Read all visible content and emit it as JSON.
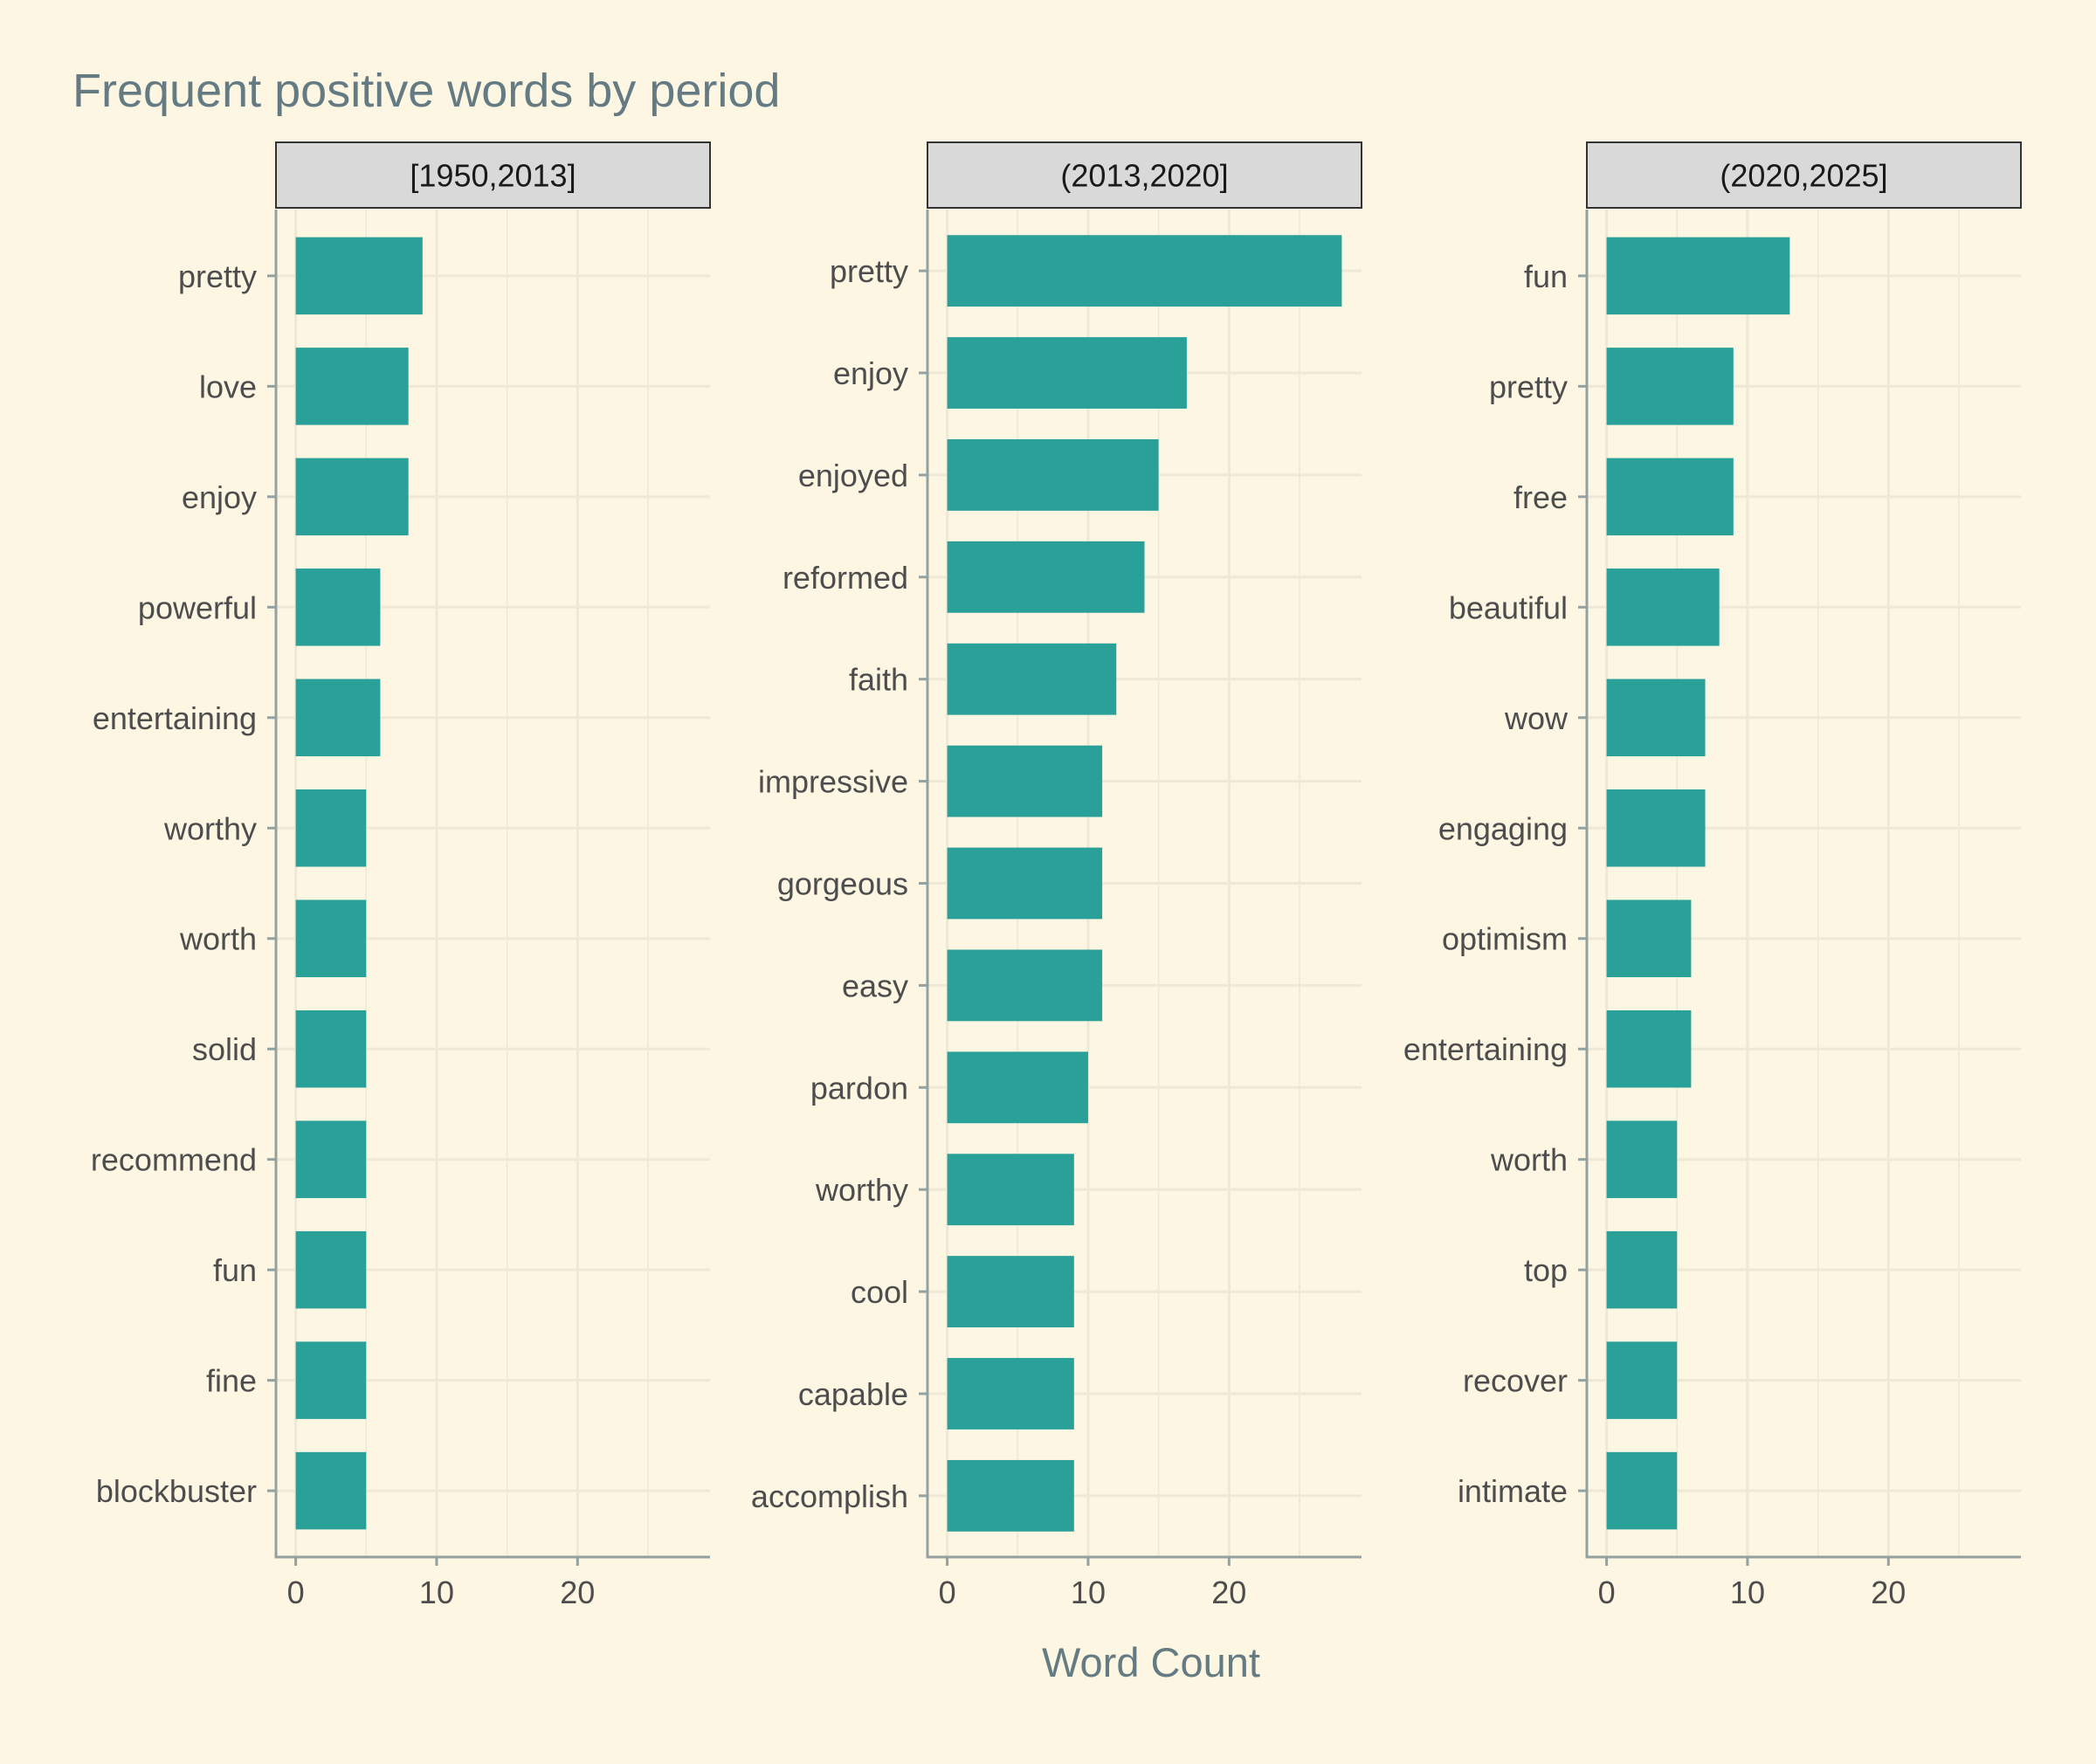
{
  "chart_data": {
    "type": "bar",
    "orientation": "horizontal",
    "title": "Frequent positive words by period",
    "xlabel": "Word Count",
    "ylabel": "",
    "xlim": [
      -1.4,
      29.4
    ],
    "x_ticks": [
      0,
      10,
      20
    ],
    "grid": true,
    "colors": {
      "background": "#fdf6e3",
      "bar": "#2aa198",
      "grid": "#eee8d5",
      "axis": "#93a1a1",
      "strip_fill": "#d9d9d9",
      "strip_border": "#333333",
      "title": "#657b83",
      "tick_text": "#4d4d4d"
    },
    "panels": [
      {
        "label": "[1950,2013]",
        "categories": [
          "pretty",
          "love",
          "enjoy",
          "powerful",
          "entertaining",
          "worthy",
          "worth",
          "solid",
          "recommend",
          "fun",
          "fine",
          "blockbuster"
        ],
        "values": [
          9,
          8,
          8,
          6,
          6,
          5,
          5,
          5,
          5,
          5,
          5,
          5
        ]
      },
      {
        "label": "(2013,2020]",
        "categories": [
          "pretty",
          "enjoy",
          "enjoyed",
          "reformed",
          "faith",
          "impressive",
          "gorgeous",
          "easy",
          "pardon",
          "worthy",
          "cool",
          "capable",
          "accomplish"
        ],
        "values": [
          28,
          17,
          15,
          14,
          12,
          11,
          11,
          11,
          10,
          9,
          9,
          9,
          9
        ]
      },
      {
        "label": "(2020,2025]",
        "categories": [
          "fun",
          "pretty",
          "free",
          "beautiful",
          "wow",
          "engaging",
          "optimism",
          "entertaining",
          "worth",
          "top",
          "recover",
          "intimate"
        ],
        "values": [
          13,
          9,
          9,
          8,
          7,
          7,
          6,
          6,
          5,
          5,
          5,
          5
        ]
      }
    ]
  }
}
